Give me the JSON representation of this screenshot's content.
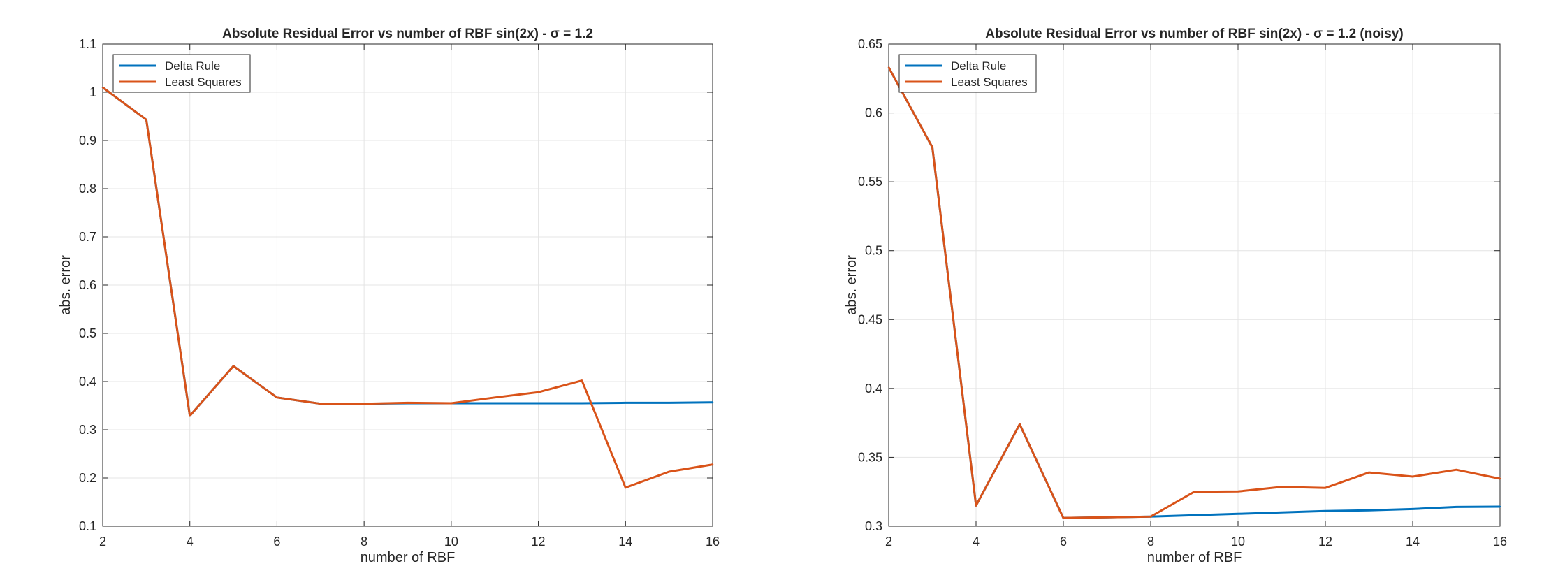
{
  "chart_data": [
    {
      "type": "line",
      "title": "Absolute Residual Error vs number of RBF sin(2x) - σ = 1.2",
      "xlabel": "number of RBF",
      "ylabel": "abs. error",
      "xlim": [
        2,
        16
      ],
      "ylim": [
        0.1,
        1.1
      ],
      "xticks": [
        2,
        4,
        6,
        8,
        10,
        12,
        14,
        16
      ],
      "yticks": [
        0.1,
        0.2,
        0.3,
        0.4,
        0.5,
        0.6,
        0.7,
        0.8,
        0.9,
        1,
        1.1
      ],
      "ytick_labels": [
        "0.1",
        "0.2",
        "0.3",
        "0.4",
        "0.5",
        "0.6",
        "0.7",
        "0.8",
        "0.9",
        "1",
        "1.1"
      ],
      "grid": true,
      "legend_position": "top-left",
      "x": [
        2,
        3,
        4,
        5,
        6,
        7,
        8,
        9,
        10,
        11,
        12,
        13,
        14,
        15,
        16
      ],
      "series": [
        {
          "name": "Delta Rule",
          "color": "#0072BD",
          "values": [
            1.01,
            0.943,
            0.329,
            0.432,
            0.367,
            0.354,
            0.354,
            0.355,
            0.355,
            0.355,
            0.355,
            0.355,
            0.356,
            0.356,
            0.357
          ]
        },
        {
          "name": "Least Squares",
          "color": "#D95319",
          "values": [
            1.01,
            0.943,
            0.329,
            0.432,
            0.367,
            0.354,
            0.354,
            0.356,
            0.355,
            0.367,
            0.378,
            0.402,
            0.18,
            0.213,
            0.228
          ]
        }
      ]
    },
    {
      "type": "line",
      "title": "Absolute Residual Error vs number of RBF sin(2x) - σ = 1.2 (noisy)",
      "xlabel": "number of RBF",
      "ylabel": "abs. error",
      "xlim": [
        2,
        16
      ],
      "ylim": [
        0.3,
        0.65
      ],
      "xticks": [
        2,
        4,
        6,
        8,
        10,
        12,
        14,
        16
      ],
      "yticks": [
        0.3,
        0.35,
        0.4,
        0.45,
        0.5,
        0.55,
        0.6,
        0.65
      ],
      "ytick_labels": [
        "0.3",
        "0.35",
        "0.4",
        "0.45",
        "0.5",
        "0.55",
        "0.6",
        "0.65"
      ],
      "grid": true,
      "legend_position": "top-left",
      "x": [
        2,
        3,
        4,
        5,
        6,
        7,
        8,
        9,
        10,
        11,
        12,
        13,
        14,
        15,
        16
      ],
      "series": [
        {
          "name": "Delta Rule",
          "color": "#0072BD",
          "values": [
            0.633,
            0.575,
            0.315,
            0.374,
            0.306,
            0.3065,
            0.307,
            0.308,
            0.309,
            0.31,
            0.311,
            0.3115,
            0.3125,
            0.314,
            0.3142
          ]
        },
        {
          "name": "Least Squares",
          "color": "#D95319",
          "values": [
            0.633,
            0.575,
            0.315,
            0.374,
            0.306,
            0.3065,
            0.307,
            0.325,
            0.3252,
            0.3285,
            0.3278,
            0.339,
            0.336,
            0.341,
            0.3345
          ]
        }
      ]
    }
  ]
}
